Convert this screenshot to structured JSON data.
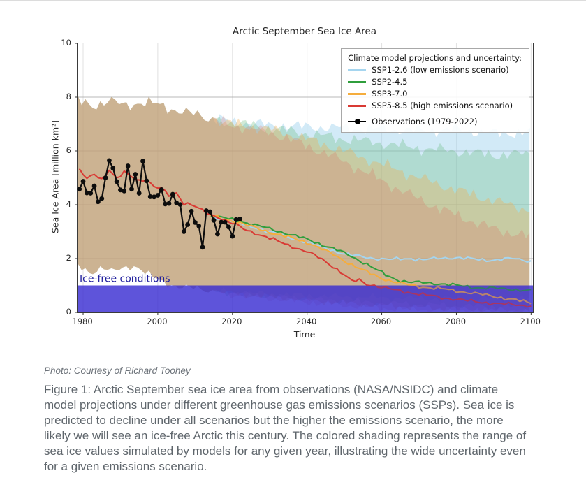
{
  "chart_data": {
    "type": "line",
    "title": "Arctic September Sea Ice Area",
    "xlabel": "Time",
    "ylabel": "Sea Ice Area [million km²]",
    "xlim": [
      1978.5,
      2100.5
    ],
    "ylim": [
      0,
      10
    ],
    "xticks": [
      1980,
      2000,
      2020,
      2040,
      2060,
      2080,
      2100
    ],
    "yticks": [
      0,
      2,
      4,
      6,
      8,
      10
    ],
    "grid": true,
    "grid_color": "#a8a8a8",
    "ice_free_band": {
      "label": "Ice-free conditions",
      "range": [
        0,
        1
      ],
      "color": "#372bd1",
      "label_color": "#1d1c9c"
    },
    "observations": {
      "name": "Observations (1979-2022)",
      "color": "#0d0d0d",
      "years": [
        1979,
        1980,
        1981,
        1982,
        1983,
        1984,
        1985,
        1986,
        1987,
        1988,
        1989,
        1990,
        1991,
        1992,
        1993,
        1994,
        1995,
        1996,
        1997,
        1998,
        1999,
        2000,
        2001,
        2002,
        2003,
        2004,
        2005,
        2006,
        2007,
        2008,
        2009,
        2010,
        2011,
        2012,
        2013,
        2014,
        2015,
        2016,
        2017,
        2018,
        2019,
        2020,
        2021,
        2022
      ],
      "values": [
        4.58,
        4.87,
        4.44,
        4.43,
        4.7,
        4.11,
        4.23,
        5.0,
        5.64,
        5.36,
        4.86,
        4.55,
        4.51,
        5.44,
        4.58,
        5.13,
        4.43,
        5.62,
        4.89,
        4.3,
        4.29,
        4.35,
        4.56,
        4.03,
        4.05,
        4.39,
        4.07,
        4.01,
        3.0,
        3.26,
        3.76,
        3.34,
        3.21,
        2.42,
        3.78,
        3.74,
        3.42,
        2.91,
        3.35,
        3.35,
        3.17,
        2.83,
        3.45,
        3.47
      ]
    },
    "historical_band": {
      "upper": [
        [
          1979,
          7.85
        ],
        [
          1983,
          7.7
        ],
        [
          1987,
          7.85
        ],
        [
          1991,
          7.7
        ],
        [
          1995,
          7.8
        ],
        [
          1999,
          7.75
        ],
        [
          2003,
          7.6
        ],
        [
          2007,
          7.45
        ],
        [
          2011,
          7.3
        ],
        [
          2014,
          7.2
        ]
      ],
      "lower": [
        [
          1979,
          1.7
        ],
        [
          1982,
          1.45
        ],
        [
          1985,
          1.7
        ],
        [
          1988,
          1.5
        ],
        [
          1991,
          1.65
        ],
        [
          1994,
          1.75
        ],
        [
          1997,
          1.45
        ],
        [
          2000,
          1.2
        ],
        [
          2003,
          1.05
        ],
        [
          2006,
          0.95
        ],
        [
          2009,
          0.9
        ],
        [
          2012,
          0.85
        ],
        [
          2014,
          0.8
        ]
      ]
    },
    "series": [
      {
        "name": "SSP1-2.6 (low emissions scenario)",
        "color": "#a5d5ef",
        "band_color": "#a5d5ef",
        "band_alpha": 0.5,
        "seed": 1,
        "mean": [
          [
            2014,
            3.58
          ],
          [
            2017,
            3.48
          ],
          [
            2020,
            3.38
          ],
          [
            2023,
            3.26
          ],
          [
            2026,
            3.15
          ],
          [
            2029,
            3.04
          ],
          [
            2032,
            2.92
          ],
          [
            2035,
            2.8
          ],
          [
            2038,
            2.68
          ],
          [
            2041,
            2.56
          ],
          [
            2044,
            2.42
          ],
          [
            2047,
            2.3
          ],
          [
            2050,
            2.18
          ],
          [
            2053,
            2.1
          ],
          [
            2056,
            2.04
          ],
          [
            2059,
            2.0
          ],
          [
            2062,
            1.97
          ],
          [
            2065,
            1.98
          ],
          [
            2068,
            2.0
          ],
          [
            2071,
            1.96
          ],
          [
            2074,
            1.99
          ],
          [
            2077,
            2.02
          ],
          [
            2080,
            2.04
          ],
          [
            2083,
            2.0
          ],
          [
            2086,
            1.96
          ],
          [
            2089,
            1.94
          ],
          [
            2092,
            1.97
          ],
          [
            2095,
            2.0
          ],
          [
            2098,
            1.95
          ],
          [
            2100,
            1.9
          ]
        ],
        "band_upper": [
          [
            2020,
            7.1
          ],
          [
            2030,
            6.95
          ],
          [
            2040,
            6.9
          ],
          [
            2050,
            6.85
          ],
          [
            2060,
            6.8
          ],
          [
            2070,
            6.75
          ],
          [
            2080,
            6.8
          ],
          [
            2090,
            6.65
          ],
          [
            2100,
            6.7
          ]
        ],
        "band_lower": [
          [
            2020,
            0.75
          ],
          [
            2035,
            0.65
          ],
          [
            2050,
            0.58
          ],
          [
            2070,
            0.52
          ],
          [
            2100,
            0.5
          ]
        ]
      },
      {
        "name": "SSP2-4.5",
        "color": "#2f9e3c",
        "band_color": "#5ab271",
        "band_alpha": 0.28,
        "seed": 2,
        "mean": [
          [
            2014,
            3.62
          ],
          [
            2017,
            3.53
          ],
          [
            2020,
            3.44
          ],
          [
            2023,
            3.35
          ],
          [
            2026,
            3.25
          ],
          [
            2029,
            3.14
          ],
          [
            2032,
            3.02
          ],
          [
            2035,
            2.92
          ],
          [
            2038,
            2.8
          ],
          [
            2041,
            2.66
          ],
          [
            2044,
            2.52
          ],
          [
            2047,
            2.38
          ],
          [
            2050,
            2.2
          ],
          [
            2053,
            2.0
          ],
          [
            2056,
            1.8
          ],
          [
            2059,
            1.55
          ],
          [
            2062,
            1.32
          ],
          [
            2065,
            1.18
          ],
          [
            2068,
            1.12
          ],
          [
            2071,
            1.1
          ],
          [
            2074,
            1.08
          ],
          [
            2077,
            1.05
          ],
          [
            2080,
            1.0
          ],
          [
            2083,
            0.95
          ],
          [
            2086,
            0.92
          ],
          [
            2089,
            0.9
          ],
          [
            2092,
            0.88
          ],
          [
            2095,
            0.86
          ],
          [
            2098,
            0.82
          ],
          [
            2100,
            0.8
          ]
        ],
        "band_upper": [
          [
            2020,
            7.05
          ],
          [
            2030,
            6.85
          ],
          [
            2040,
            6.65
          ],
          [
            2050,
            6.45
          ],
          [
            2060,
            6.3
          ],
          [
            2070,
            6.1
          ],
          [
            2080,
            6.0
          ],
          [
            2090,
            5.85
          ],
          [
            2100,
            5.9
          ]
        ],
        "band_lower": [
          [
            2020,
            0.72
          ],
          [
            2040,
            0.5
          ],
          [
            2060,
            0.35
          ],
          [
            2080,
            0.25
          ],
          [
            2100,
            0.2
          ]
        ]
      },
      {
        "name": "SSP3-7.0",
        "color": "#f5ad3d",
        "band_color": "#f0b052",
        "band_alpha": 0.36,
        "seed": 3,
        "mean": [
          [
            2014,
            3.6
          ],
          [
            2017,
            3.5
          ],
          [
            2020,
            3.4
          ],
          [
            2023,
            3.28
          ],
          [
            2026,
            3.15
          ],
          [
            2029,
            3.02
          ],
          [
            2032,
            2.9
          ],
          [
            2035,
            2.8
          ],
          [
            2038,
            2.68
          ],
          [
            2041,
            2.55
          ],
          [
            2044,
            2.35
          ],
          [
            2047,
            2.15
          ],
          [
            2050,
            1.92
          ],
          [
            2053,
            1.7
          ],
          [
            2056,
            1.5
          ],
          [
            2059,
            1.32
          ],
          [
            2062,
            1.18
          ],
          [
            2065,
            1.08
          ],
          [
            2068,
            1.0
          ],
          [
            2071,
            0.95
          ],
          [
            2074,
            0.9
          ],
          [
            2077,
            0.86
          ],
          [
            2080,
            0.8
          ],
          [
            2083,
            0.74
          ],
          [
            2086,
            0.68
          ],
          [
            2089,
            0.62
          ],
          [
            2092,
            0.55
          ],
          [
            2095,
            0.48
          ],
          [
            2098,
            0.4
          ],
          [
            2100,
            0.35
          ]
        ],
        "band_upper": [
          [
            2020,
            7.0
          ],
          [
            2030,
            6.8
          ],
          [
            2040,
            6.45
          ],
          [
            2050,
            6.0
          ],
          [
            2060,
            5.5
          ],
          [
            2070,
            5.0
          ],
          [
            2080,
            4.55
          ],
          [
            2090,
            4.15
          ],
          [
            2100,
            3.8
          ]
        ],
        "band_lower": [
          [
            2020,
            0.7
          ],
          [
            2040,
            0.45
          ],
          [
            2060,
            0.25
          ],
          [
            2080,
            0.12
          ],
          [
            2100,
            0.05
          ]
        ]
      },
      {
        "name": "SSP5-8.5 (high emissions scenario)",
        "color": "#d93a34",
        "band_color": "#e2574f",
        "band_alpha": 0.2,
        "seed": 4,
        "mean": [
          [
            1979,
            5.3
          ],
          [
            1981,
            4.95
          ],
          [
            1983,
            5.15
          ],
          [
            1985,
            4.95
          ],
          [
            1987,
            5.3
          ],
          [
            1989,
            4.95
          ],
          [
            1991,
            5.2
          ],
          [
            1993,
            5.05
          ],
          [
            1995,
            4.9
          ],
          [
            1997,
            4.95
          ],
          [
            1999,
            4.65
          ],
          [
            2001,
            4.6
          ],
          [
            2003,
            4.35
          ],
          [
            2005,
            4.45
          ],
          [
            2007,
            4.05
          ],
          [
            2009,
            4.0
          ],
          [
            2011,
            3.85
          ],
          [
            2013,
            3.7
          ],
          [
            2015,
            3.6
          ],
          [
            2017,
            3.5
          ],
          [
            2019,
            3.35
          ],
          [
            2021,
            3.25
          ],
          [
            2023,
            3.1
          ],
          [
            2025,
            3.0
          ],
          [
            2028,
            2.85
          ],
          [
            2031,
            2.7
          ],
          [
            2034,
            2.55
          ],
          [
            2037,
            2.4
          ],
          [
            2040,
            2.25
          ],
          [
            2043,
            2.05
          ],
          [
            2046,
            1.8
          ],
          [
            2049,
            1.5
          ],
          [
            2052,
            1.15
          ],
          [
            2054,
            1.2
          ],
          [
            2056,
            1.05
          ],
          [
            2058,
            1.0
          ],
          [
            2061,
            0.9
          ],
          [
            2064,
            0.82
          ],
          [
            2067,
            0.75
          ],
          [
            2070,
            0.68
          ],
          [
            2073,
            0.62
          ],
          [
            2076,
            0.55
          ],
          [
            2079,
            0.5
          ],
          [
            2082,
            0.45
          ],
          [
            2085,
            0.4
          ],
          [
            2088,
            0.36
          ],
          [
            2091,
            0.32
          ],
          [
            2094,
            0.3
          ],
          [
            2097,
            0.27
          ],
          [
            2100,
            0.25
          ]
        ],
        "band_upper": [
          [
            2020,
            6.95
          ],
          [
            2030,
            6.7
          ],
          [
            2040,
            6.2
          ],
          [
            2050,
            5.6
          ],
          [
            2060,
            4.9
          ],
          [
            2070,
            4.2
          ],
          [
            2080,
            3.6
          ],
          [
            2090,
            3.1
          ],
          [
            2100,
            2.8
          ]
        ],
        "band_lower": [
          [
            2020,
            0.65
          ],
          [
            2040,
            0.38
          ],
          [
            2060,
            0.15
          ],
          [
            2080,
            0.06
          ],
          [
            2100,
            0.02
          ]
        ]
      }
    ]
  },
  "legend": {
    "title": "Climate model projections and uncertainty:",
    "items": [
      {
        "label": "SSP1-2.6 (low emissions scenario)",
        "color": "#a5d5ef"
      },
      {
        "label": "SSP2-4.5",
        "color": "#2f9e3c"
      },
      {
        "label": "SSP3-7.0",
        "color": "#f5ad3d"
      },
      {
        "label": "SSP5-8.5 (high emissions scenario)",
        "color": "#d93a34"
      },
      {
        "label": "Observations (1979-2022)",
        "color": "#000000"
      }
    ]
  },
  "caption": {
    "photo_credit": "Photo: Courtesy of Richard Toohey",
    "figure_caption": "Figure 1: Arctic September sea ice area from observations (NASA/NSIDC) and climate model projections under different greenhouse gas emissions scenarios (SSPs). Sea ice is predicted to decline under all scenarios but the higher the emissions scenario, the more likely we will see an ice-free Arctic this century. The colored shading represents the range of sea ice values simulated by models for any given year, illustrating the wide uncertainty even for a given emissions scenario."
  }
}
